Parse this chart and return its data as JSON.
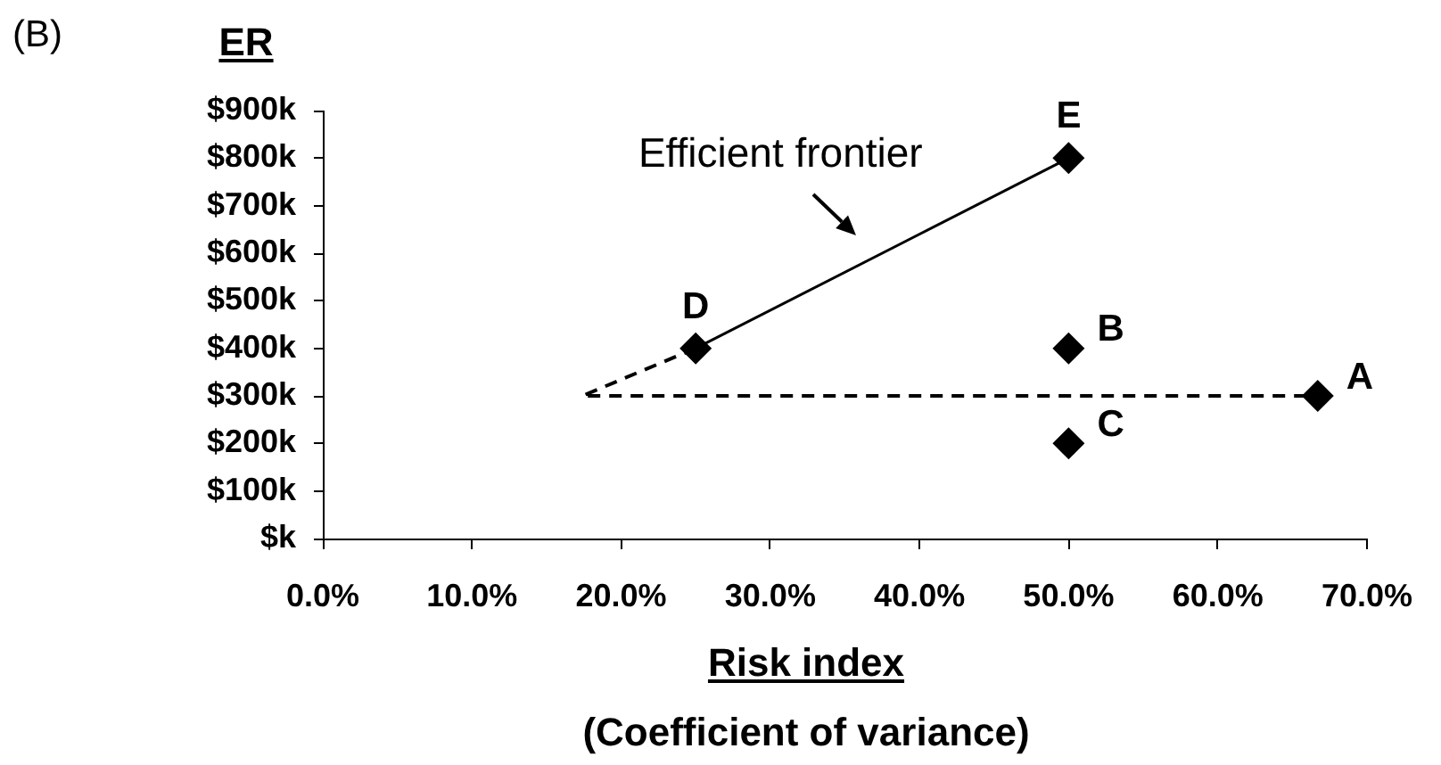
{
  "chart_data": {
    "type": "scatter",
    "title": "(B)",
    "ylabel": "ER",
    "xlabel": "Risk index\n(Coefficient of variance)",
    "xlim": [
      0,
      70
    ],
    "xticks": [
      {
        "value": 0,
        "label": "0.0%"
      },
      {
        "value": 10,
        "label": "10.0%"
      },
      {
        "value": 20,
        "label": "20.0%"
      },
      {
        "value": 30,
        "label": "30.0%"
      },
      {
        "value": 40,
        "label": "40.0%"
      },
      {
        "value": 50,
        "label": "50.0%"
      },
      {
        "value": 60,
        "label": "60.0%"
      },
      {
        "value": 70,
        "label": "70.0%"
      }
    ],
    "ylim": [
      0,
      900
    ],
    "yticks": [
      {
        "value": 0,
        "label": "$k"
      },
      {
        "value": 100,
        "label": "$100k"
      },
      {
        "value": 200,
        "label": "$200k"
      },
      {
        "value": 300,
        "label": "$300k"
      },
      {
        "value": 400,
        "label": "$400k"
      },
      {
        "value": 500,
        "label": "$500k"
      },
      {
        "value": 600,
        "label": "$600k"
      },
      {
        "value": 700,
        "label": "$700k"
      },
      {
        "value": 800,
        "label": "$800k"
      },
      {
        "value": 900,
        "label": "$900k"
      }
    ],
    "grid": false,
    "legend": false,
    "series": [
      {
        "type": "scatter",
        "color": "#000000",
        "marker": "diamond",
        "x": [
          66.7,
          50,
          50,
          25,
          50
        ],
        "values": [
          300,
          400,
          200,
          400,
          800
        ]
      },
      {
        "type": "line",
        "name": "Efficient frontier",
        "color": "#000000",
        "marker": "none",
        "line_style": "solid",
        "x": [
          25,
          50
        ],
        "values": [
          400,
          800
        ]
      },
      {
        "type": "line",
        "color": "#000000",
        "marker": "none",
        "line_style": "dashed",
        "x": [
          25,
          17.4,
          66.7
        ],
        "values": [
          400,
          300,
          300
        ]
      }
    ],
    "annotations": [
      {
        "text": "A",
        "x": 66.7,
        "y": 300
      },
      {
        "text": "B",
        "x": 50,
        "y": 400
      },
      {
        "text": "C",
        "x": 50,
        "y": 200
      },
      {
        "text": "D",
        "x": 25,
        "y": 400
      },
      {
        "text": "E",
        "x": 50,
        "y": 800
      }
    ]
  }
}
